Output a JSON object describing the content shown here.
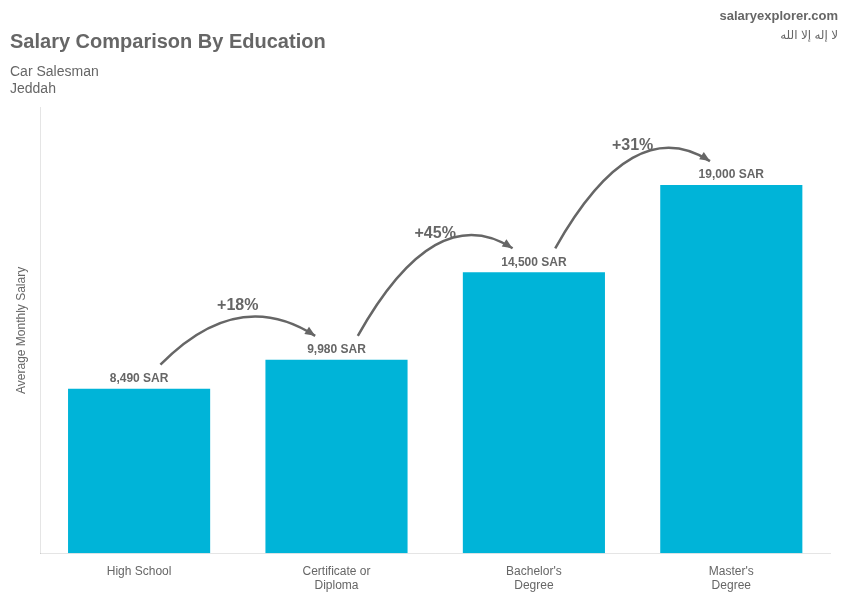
{
  "chart_data": {
    "type": "bar",
    "title": "Salary Comparison By Education",
    "subtitle": [
      "Car Salesman",
      "Jeddah"
    ],
    "ylabel": "Average Monthly Salary",
    "categories": [
      "High School",
      "Certificate or\nDiploma",
      "Bachelor's\nDegree",
      "Master's\nDegree"
    ],
    "values": [
      8490,
      9980,
      14500,
      19000
    ],
    "value_labels": [
      "8,490 SAR",
      "9,980 SAR",
      "14,500 SAR",
      "19,000 SAR"
    ],
    "data_labels": true,
    "color": "#00b4d8",
    "ylim": [
      0,
      23000
    ],
    "tick_labels": "x",
    "grid": false,
    "annotations": [
      {
        "text": "+18%",
        "from": "High School",
        "to": "Certificate or\nDiploma"
      },
      {
        "text": "+45%",
        "from": "Certificate or\nDiploma",
        "to": "Bachelor's\nDegree"
      },
      {
        "text": "+31%",
        "from": "Bachelor's\nDegree",
        "to": "Master's\nDegree"
      },
      {
        "text": "salaryexplorer.com"
      },
      {
        "text": "لا إله إلا الله"
      }
    ]
  }
}
